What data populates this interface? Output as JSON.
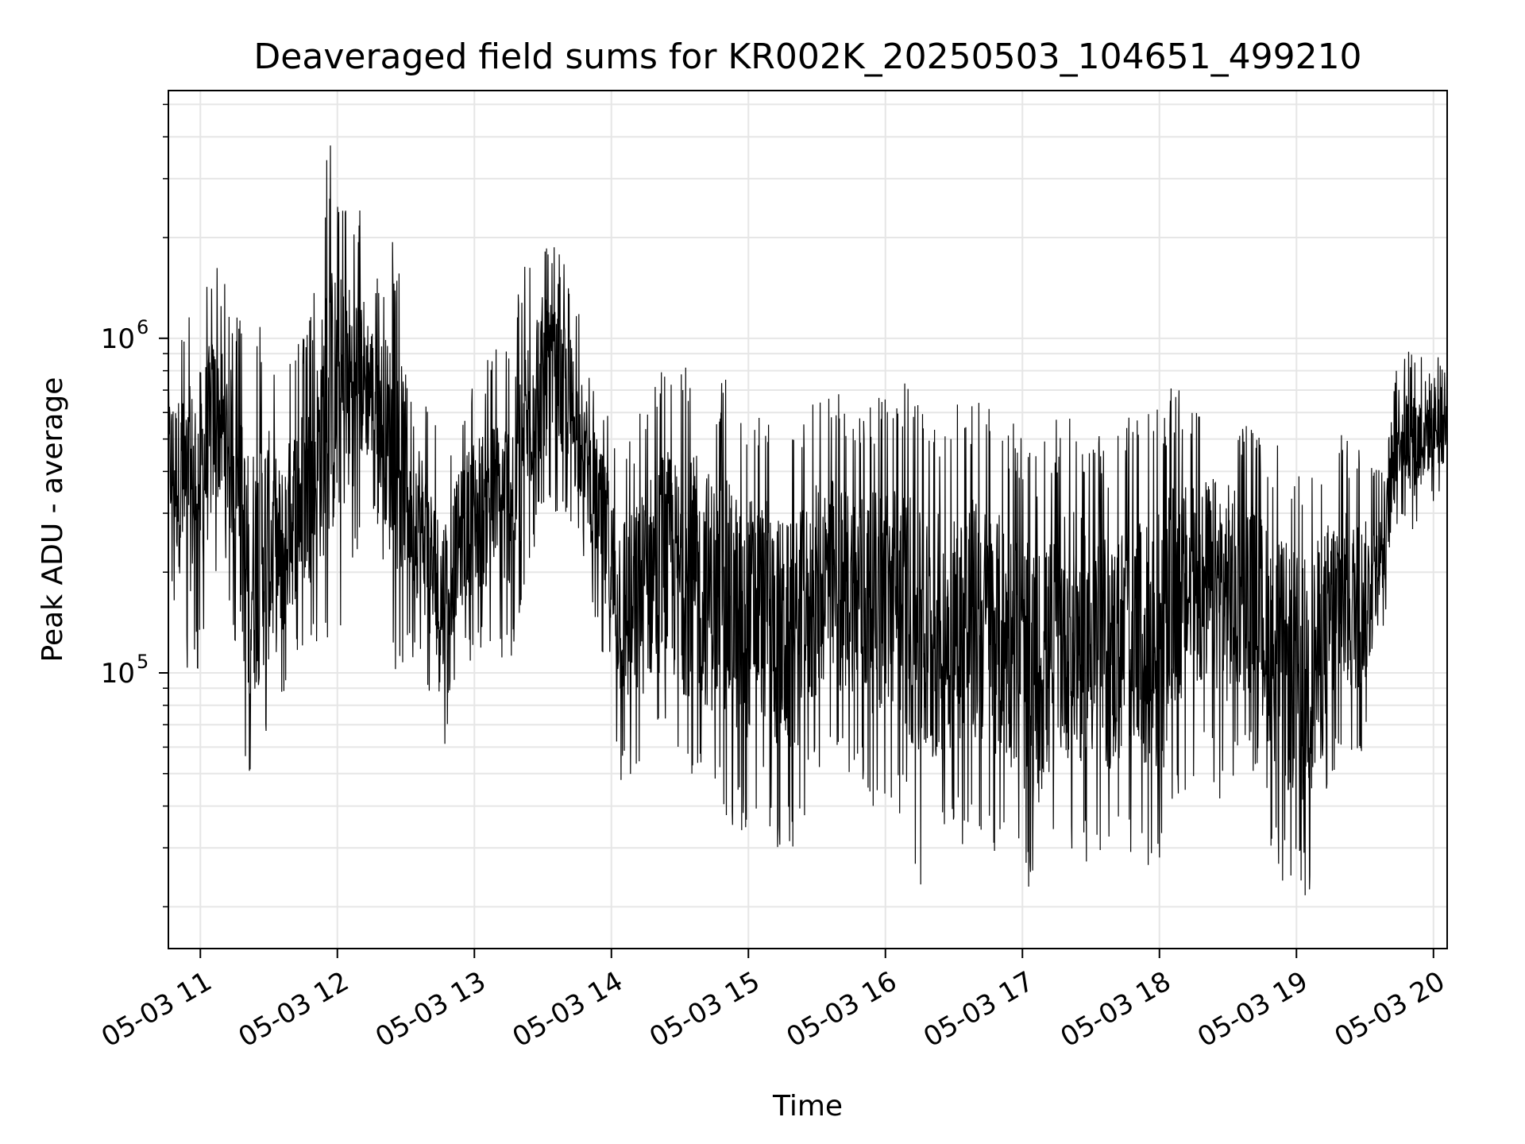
{
  "chart_data": {
    "type": "line",
    "title": "Deaveraged field sums for KR002K_20250503_104651_499210",
    "xlabel": "Time",
    "ylabel": "Peak ADU - average",
    "yscale": "log",
    "grid": true,
    "line_color": "#000000",
    "grid_color": "#e6e6e6",
    "xlim": [
      "2025-05-03 10:46",
      "2025-05-03 20:06"
    ],
    "ylim": [
      15000,
      5500000
    ],
    "x_ticks": [
      {
        "value": "2025-05-03 11:00",
        "label": "05-03 11"
      },
      {
        "value": "2025-05-03 12:00",
        "label": "05-03 12"
      },
      {
        "value": "2025-05-03 13:00",
        "label": "05-03 13"
      },
      {
        "value": "2025-05-03 14:00",
        "label": "05-03 14"
      },
      {
        "value": "2025-05-03 15:00",
        "label": "05-03 15"
      },
      {
        "value": "2025-05-03 16:00",
        "label": "05-03 16"
      },
      {
        "value": "2025-05-03 17:00",
        "label": "05-03 17"
      },
      {
        "value": "2025-05-03 18:00",
        "label": "05-03 18"
      },
      {
        "value": "2025-05-03 19:00",
        "label": "05-03 19"
      },
      {
        "value": "2025-05-03 20:00",
        "label": "05-03 20"
      }
    ],
    "y_ticks": [
      {
        "value": 100000,
        "base": "10",
        "exp": "5"
      },
      {
        "value": 1000000,
        "base": "10",
        "exp": "6"
      }
    ],
    "series": [
      {
        "x": [
          "2025-05-03 10:46",
          "2025-05-03 10:53",
          "2025-05-03 11:00",
          "2025-05-03 11:07",
          "2025-05-03 11:14",
          "2025-05-03 11:21",
          "2025-05-03 11:28",
          "2025-05-03 11:35",
          "2025-05-03 11:42",
          "2025-05-03 11:49",
          "2025-05-03 11:56",
          "2025-05-03 12:03",
          "2025-05-03 12:10",
          "2025-05-03 12:17",
          "2025-05-03 12:24",
          "2025-05-03 12:31",
          "2025-05-03 12:38",
          "2025-05-03 12:45",
          "2025-05-03 12:52",
          "2025-05-03 12:59",
          "2025-05-03 13:06",
          "2025-05-03 13:13",
          "2025-05-03 13:20",
          "2025-05-03 13:27",
          "2025-05-03 13:34",
          "2025-05-03 13:41",
          "2025-05-03 13:48",
          "2025-05-03 13:55",
          "2025-05-03 14:02",
          "2025-05-03 14:09",
          "2025-05-03 14:16",
          "2025-05-03 14:23",
          "2025-05-03 14:30",
          "2025-05-03 14:37",
          "2025-05-03 14:44",
          "2025-05-03 14:51",
          "2025-05-03 14:58",
          "2025-05-03 15:05",
          "2025-05-03 15:12",
          "2025-05-03 15:19",
          "2025-05-03 15:26",
          "2025-05-03 15:33",
          "2025-05-03 15:40",
          "2025-05-03 15:47",
          "2025-05-03 15:54",
          "2025-05-03 16:01",
          "2025-05-03 16:08",
          "2025-05-03 16:15",
          "2025-05-03 16:22",
          "2025-05-03 16:29",
          "2025-05-03 16:36",
          "2025-05-03 16:43",
          "2025-05-03 16:50",
          "2025-05-03 16:57",
          "2025-05-03 17:04",
          "2025-05-03 17:11",
          "2025-05-03 17:18",
          "2025-05-03 17:25",
          "2025-05-03 17:32",
          "2025-05-03 17:39",
          "2025-05-03 17:46",
          "2025-05-03 17:53",
          "2025-05-03 18:00",
          "2025-05-03 18:07",
          "2025-05-03 18:14",
          "2025-05-03 18:21",
          "2025-05-03 18:28",
          "2025-05-03 18:35",
          "2025-05-03 18:42",
          "2025-05-03 18:49",
          "2025-05-03 18:56",
          "2025-05-03 19:03",
          "2025-05-03 19:10",
          "2025-05-03 19:17",
          "2025-05-03 19:24",
          "2025-05-03 19:31",
          "2025-05-03 19:38",
          "2025-05-03 19:45",
          "2025-05-03 19:52",
          "2025-05-03 19:59",
          "2025-05-03 20:06"
        ],
        "low": [
          200000,
          95000,
          100000,
          200000,
          150000,
          35000,
          50000,
          70000,
          100000,
          110000,
          100000,
          150000,
          250000,
          300000,
          100000,
          110000,
          95000,
          50000,
          100000,
          110000,
          110000,
          100000,
          120000,
          250000,
          300000,
          250000,
          220000,
          120000,
          50000,
          40000,
          50000,
          55000,
          45000,
          42000,
          38000,
          35000,
          30000,
          40000,
          30000,
          27000,
          40000,
          50000,
          45000,
          50000,
          40000,
          40000,
          36000,
          22000,
          25000,
          30000,
          30000,
          30000,
          28000,
          25000,
          18000,
          22000,
          28000,
          25000,
          28000,
          25000,
          28000,
          25000,
          20000,
          40000,
          45000,
          50000,
          40000,
          50000,
          50000,
          30000,
          21000,
          20000,
          25000,
          50000,
          50000,
          60000,
          130000,
          300000,
          250000,
          300000,
          350000
        ],
        "high": [
          1000000,
          1200000,
          1500000,
          1800000,
          1300000,
          1000000,
          1200000,
          700000,
          1000000,
          1200000,
          4000000,
          3000000,
          2500000,
          1500000,
          2000000,
          1300000,
          700000,
          500000,
          550000,
          800000,
          900000,
          1000000,
          1500000,
          2300000,
          1900000,
          1700000,
          1000000,
          700000,
          600000,
          550000,
          700000,
          900000,
          800000,
          900000,
          800000,
          750000,
          700000,
          650000,
          600000,
          550000,
          600000,
          750000,
          700000,
          650000,
          650000,
          700000,
          800000,
          650000,
          650000,
          600000,
          700000,
          650000,
          600000,
          550000,
          500000,
          500000,
          650000,
          600000,
          550000,
          500000,
          600000,
          550000,
          700000,
          750000,
          650000,
          700000,
          750000,
          600000,
          550000,
          500000,
          500000,
          450000,
          500000,
          550000,
          500000,
          450000,
          400000,
          1000000,
          900000,
          1100000,
          800000
        ]
      }
    ]
  }
}
